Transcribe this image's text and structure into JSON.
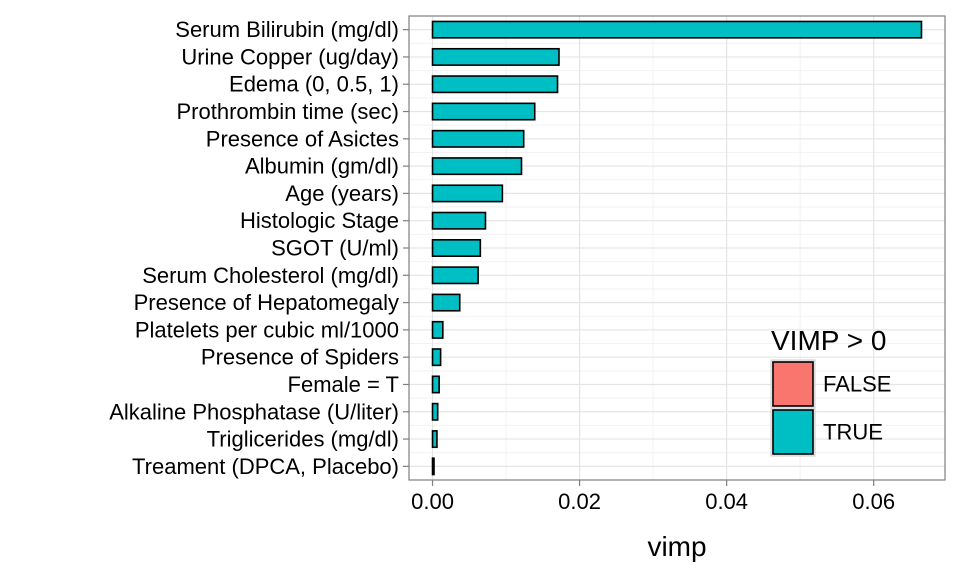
{
  "chart_data": {
    "type": "bar",
    "orientation": "horizontal",
    "categories": [
      "Serum Bilirubin (mg/dl)",
      "Urine Copper (ug/day)",
      "Edema (0, 0.5, 1)",
      "Prothrombin time (sec)",
      "Presence of Asictes",
      "Albumin (gm/dl)",
      "Age (years)",
      "Histologic Stage",
      "SGOT (U/ml)",
      "Serum Cholesterol (mg/dl)",
      "Presence of Hepatomegaly",
      "Platelets per cubic ml/1000",
      "Presence of Spiders",
      "Female = T",
      "Alkaline Phosphatase (U/liter)",
      "Triglicerides (mg/dl)",
      "Treament (DPCA, Placebo)"
    ],
    "values": [
      0.0665,
      0.0172,
      0.017,
      0.0139,
      0.0124,
      0.0121,
      0.0095,
      0.0072,
      0.0065,
      0.0062,
      0.0037,
      0.0014,
      0.0011,
      0.0009,
      0.0007,
      0.0006,
      0.0002
    ],
    "positive": [
      true,
      true,
      true,
      true,
      true,
      true,
      true,
      true,
      true,
      true,
      true,
      true,
      true,
      true,
      true,
      true,
      true
    ],
    "xlabel": "vimp",
    "ylabel": "",
    "xlim": [
      -0.0032,
      0.0697
    ],
    "xticks": [
      0.0,
      0.02,
      0.04,
      0.06
    ],
    "xtick_labels": [
      "0.00",
      "0.02",
      "0.04",
      "0.06"
    ],
    "grid": true,
    "legend": {
      "title": "VIMP > 0",
      "position": "bottom-right",
      "entries": [
        {
          "label": "FALSE",
          "color": "#F8766D"
        },
        {
          "label": "TRUE",
          "color": "#00BFC4"
        }
      ]
    },
    "colors": {
      "true": "#00BFC4",
      "false": "#F8766D",
      "grid_major": "#e5e5e5",
      "grid_minor": "#f2f2f2",
      "panel_border": "#7f7f7f",
      "bar_outline": "#000000"
    }
  }
}
